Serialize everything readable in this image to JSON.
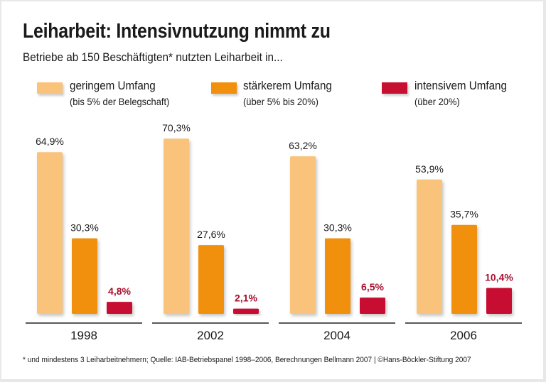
{
  "title": "Leiharbeit: Intensivnutzung nimmt zu",
  "subtitle": "Betriebe ab 150 Beschäftigten* nutzten Leiharbeit in...",
  "footer": "* und mindestens 3 Leiharbeitnehmern; Quelle: IAB-Betriebspanel 1998–2006, Berechnungen Bellmann 2007 | ©Hans-Böckler-Stiftung 2007",
  "legend": [
    {
      "label": "geringem Umfang",
      "sub": "(bis 5% der Belegschaft)",
      "color": "#f9c37c"
    },
    {
      "label": "stärkerem Umfang",
      "sub": "(über 5% bis 20%)",
      "color": "#f0900c"
    },
    {
      "label": "intensivem Umfang",
      "sub": "(über 20%)",
      "color": "#c70f32"
    }
  ],
  "chart_data": {
    "type": "bar",
    "title": "Leiharbeit: Intensivnutzung nimmt zu",
    "subtitle": "Betriebe ab 150 Beschäftigten* nutzten Leiharbeit in...",
    "categories": [
      "1998",
      "2002",
      "2004",
      "2006"
    ],
    "series": [
      {
        "name": "geringem Umfang",
        "values": [
          64.9,
          70.3,
          63.2,
          53.9
        ],
        "labels": [
          "64,9%",
          "70,3%",
          "63,2%",
          "53,9%"
        ],
        "color": "#f9c37c"
      },
      {
        "name": "stärkerem Umfang",
        "values": [
          30.3,
          27.6,
          30.3,
          35.7
        ],
        "labels": [
          "30,3%",
          "27,6%",
          "30,3%",
          "35,7%"
        ],
        "color": "#f0900c"
      },
      {
        "name": "intensivem Umfang",
        "values": [
          4.8,
          2.1,
          6.5,
          10.4
        ],
        "labels": [
          "4,8%",
          "2,1%",
          "6,5%",
          "10,4%"
        ],
        "color": "#c70f32"
      }
    ],
    "ylim": [
      0,
      75
    ],
    "grid": false,
    "legend_position": "top",
    "unit": "%"
  }
}
